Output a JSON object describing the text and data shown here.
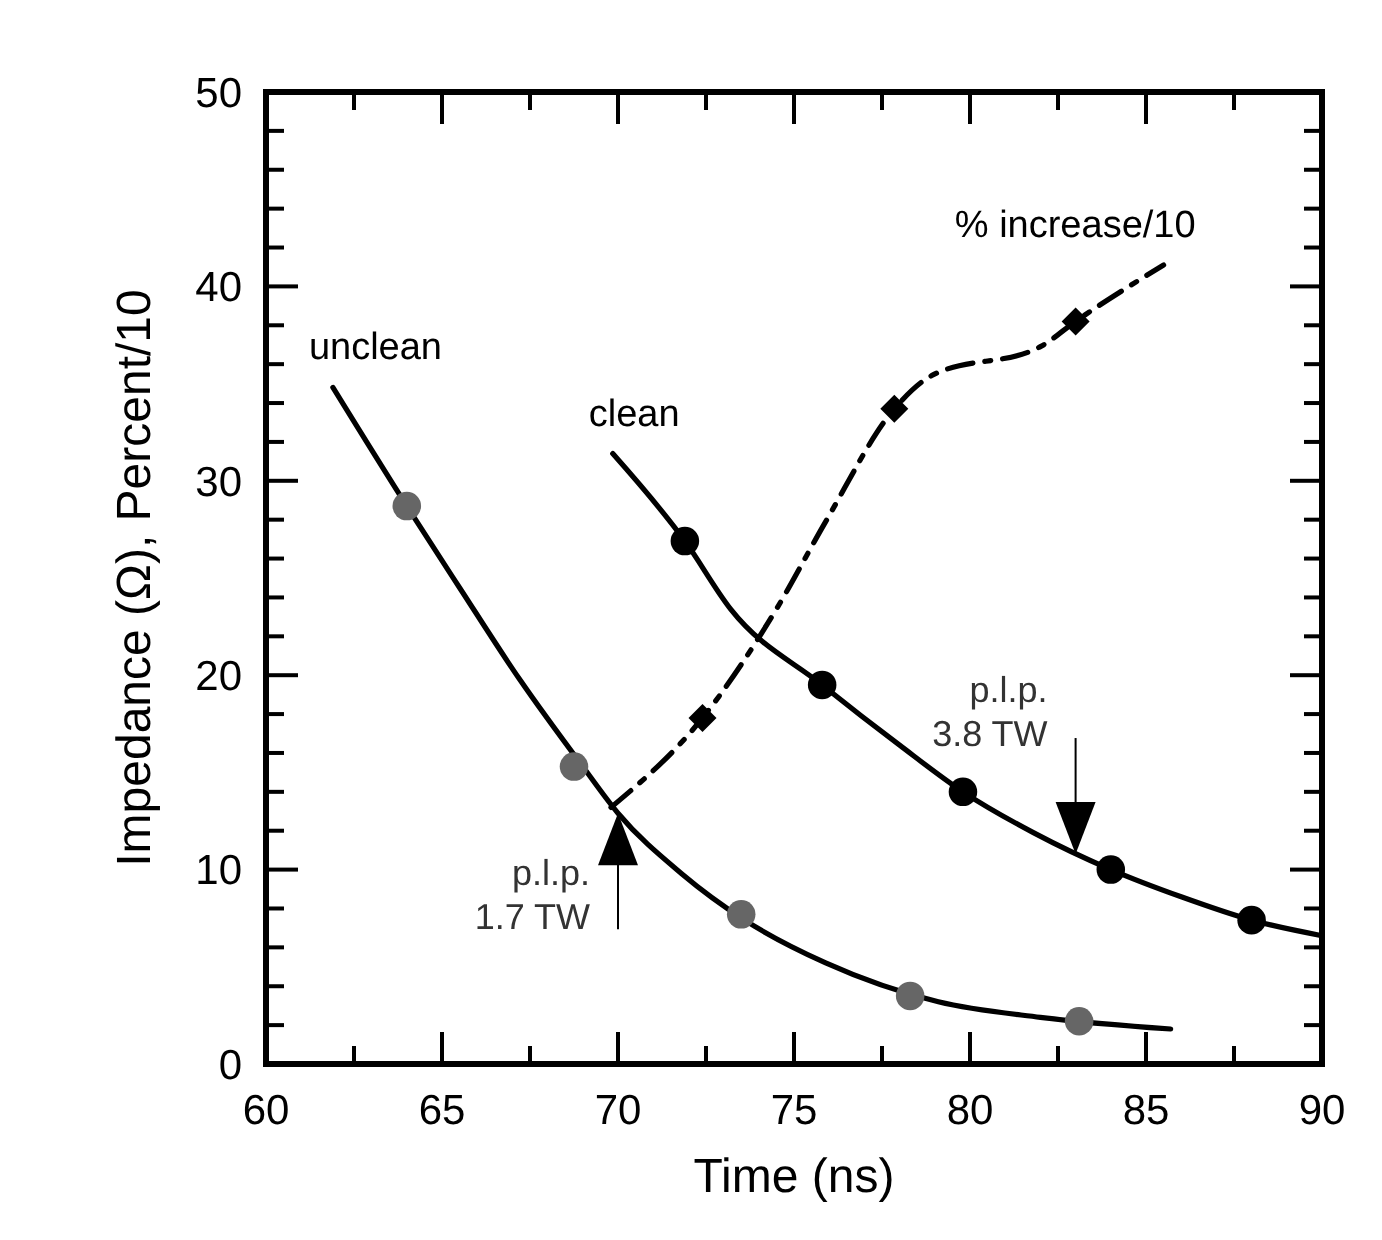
{
  "chart_data": {
    "type": "line",
    "xlabel": "Time (ns)",
    "ylabel": "Impedance (Ω), Percent/10",
    "xlim": [
      60,
      90
    ],
    "ylim": [
      0,
      50
    ],
    "xticks": [
      60,
      {
        "value": 62.5,
        "label": null
      },
      65,
      {
        "value": 67.5,
        "label": null
      },
      70,
      {
        "value": 72.5,
        "label": null
      },
      75,
      {
        "value": 77.5,
        "label": null
      },
      80,
      {
        "value": 82.5,
        "label": null
      },
      85,
      {
        "value": 87.5,
        "label": null
      },
      90
    ],
    "yticks": [
      0,
      {
        "value": 2,
        "label": null
      },
      {
        "value": 4,
        "label": null
      },
      {
        "value": 6,
        "label": null
      },
      {
        "value": 8,
        "label": null
      },
      10,
      {
        "value": 12,
        "label": null
      },
      {
        "value": 14,
        "label": null
      },
      {
        "value": 16,
        "label": null
      },
      {
        "value": 18,
        "label": null
      },
      20,
      {
        "value": 22,
        "label": null
      },
      {
        "value": 24,
        "label": null
      },
      {
        "value": 26,
        "label": null
      },
      {
        "value": 28,
        "label": null
      },
      30,
      {
        "value": 32,
        "label": null
      },
      {
        "value": 34,
        "label": null
      },
      {
        "value": 36,
        "label": null
      },
      {
        "value": 38,
        "label": null
      },
      40,
      {
        "value": 42,
        "label": null
      },
      {
        "value": 44,
        "label": null
      },
      {
        "value": 46,
        "label": null
      },
      {
        "value": 48,
        "label": null
      },
      50
    ],
    "grid": false,
    "series": [
      {
        "name": "unclean",
        "color": "#000000",
        "line_style": "solid",
        "marker": "none",
        "x": [
          61.9,
          64.0,
          65.5,
          67.2,
          69.0,
          70.0,
          71.8,
          73.6,
          75.9,
          79.1,
          82.0,
          85.7
        ],
        "values": [
          34.8,
          28.7,
          24.5,
          19.8,
          15.3,
          12.9,
          9.8,
          7.4,
          5.2,
          3.2,
          2.4,
          1.8
        ]
      },
      {
        "type": "scatter",
        "color": "#666666",
        "marker": "circle",
        "x": [
          64.0,
          68.75,
          73.5,
          78.3,
          83.1
        ],
        "values": [
          28.7,
          15.3,
          7.7,
          3.5,
          2.2
        ]
      },
      {
        "name": "clean",
        "color": "#000000",
        "line_style": "solid",
        "marker": "none",
        "x": [
          69.85,
          71.9,
          73.2,
          75.8,
          78.0,
          79.8,
          81.8,
          84.0,
          86.0,
          88.0,
          90.0
        ],
        "values": [
          31.4,
          26.9,
          23.4,
          19.5,
          16.4,
          14.0,
          11.9,
          10.0,
          8.6,
          7.4,
          6.6
        ]
      },
      {
        "type": "scatter",
        "color": "#000000",
        "marker": "circle",
        "x": [
          71.9,
          75.8,
          79.8,
          84.0,
          88.0
        ],
        "values": [
          26.9,
          19.5,
          14.0,
          10.0,
          7.4
        ]
      },
      {
        "name": "% increase/10",
        "color": "#000000",
        "line_style": "dashed",
        "marker": "none",
        "x": [
          69.8,
          72.4,
          74.5,
          75.9,
          77.85,
          78.9,
          82.0,
          83.0,
          85.5
        ],
        "values": [
          13.2,
          17.8,
          23.4,
          27.9,
          33.7,
          35.4,
          36.9,
          38.2,
          41.1
        ]
      },
      {
        "type": "scatter",
        "color": "#000000",
        "marker": "diamond",
        "x": [
          72.4,
          77.85,
          83.0
        ],
        "values": [
          17.8,
          33.7,
          38.2
        ]
      }
    ],
    "annotations": [
      {
        "text": "p.l.p.\n1.7 TW",
        "x": 70,
        "y": 12.9
      },
      {
        "text": "p.l.p.\n3.8 TW",
        "x": 83,
        "y": 10.8
      }
    ]
  }
}
